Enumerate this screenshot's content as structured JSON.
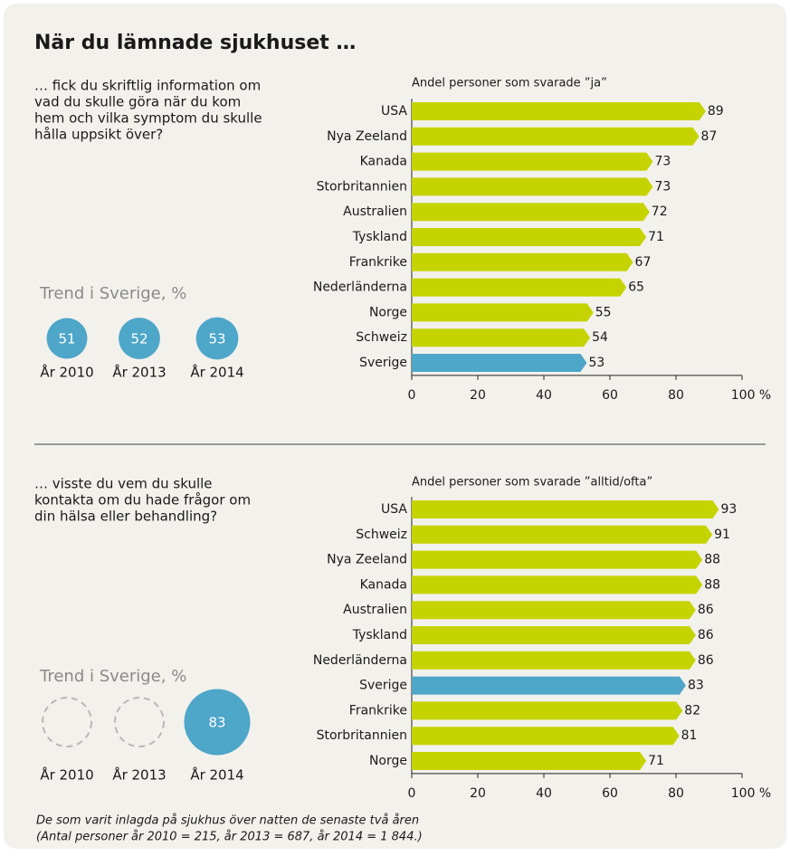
{
  "title": "När du lämnade sjukhuset …",
  "footnote": [
    "De som varit inlagda på sjukhus över natten de senaste två åren",
    "(Antal personer år 2010 = 215, år 2013 = 687, år 2014 = 1 844.)"
  ],
  "chart_data": [
    {
      "type": "bar",
      "question": [
        "… fick du skriftlig information om",
        "vad du skulle göra när du kom",
        "hem och vilka symptom du skulle",
        "hålla uppsikt över?"
      ],
      "subtitle": "Andel personer som svarade ”ja”",
      "categories": [
        "USA",
        "Nya Zeeland",
        "Kanada",
        "Storbritannien",
        "Australien",
        "Tyskland",
        "Frankrike",
        "Nederländerna",
        "Norge",
        "Schweiz",
        "Sverige"
      ],
      "values": [
        89,
        87,
        73,
        73,
        72,
        71,
        67,
        65,
        55,
        54,
        53
      ],
      "colors": [
        "#c5d400",
        "#c5d400",
        "#c5d400",
        "#c5d400",
        "#c5d400",
        "#c5d400",
        "#c5d400",
        "#c5d400",
        "#c5d400",
        "#c5d400",
        "#4ea6c9"
      ],
      "xlim": [
        0,
        100
      ],
      "xticks": [
        0,
        20,
        40,
        60,
        80,
        {
          "value": 100,
          "label": "100 %"
        }
      ],
      "trend": {
        "label": "Trend i Sverige, %",
        "years": [
          "År 2010",
          "År 2013",
          "År 2014"
        ],
        "values": [
          51,
          52,
          53
        ],
        "color": "#4ea6c9"
      }
    },
    {
      "type": "bar",
      "question": [
        "… visste du vem du skulle",
        "kontakta om du hade frågor om",
        "din hälsa eller behandling?"
      ],
      "subtitle": "Andel personer som svarade ”alltid/ofta”",
      "categories": [
        "USA",
        "Schweiz",
        "Nya Zeeland",
        "Kanada",
        "Australien",
        "Tyskland",
        "Nederländerna",
        "Sverige",
        "Frankrike",
        "Storbritannien",
        "Norge"
      ],
      "values": [
        93,
        91,
        88,
        88,
        86,
        86,
        86,
        83,
        82,
        81,
        71
      ],
      "colors": [
        "#c5d400",
        "#c5d400",
        "#c5d400",
        "#c5d400",
        "#c5d400",
        "#c5d400",
        "#c5d400",
        "#4ea6c9",
        "#c5d400",
        "#c5d400",
        "#c5d400"
      ],
      "xlim": [
        0,
        100
      ],
      "xticks": [
        0,
        20,
        40,
        60,
        80,
        {
          "value": 100,
          "label": "100 %"
        }
      ],
      "trend": {
        "label": "Trend i Sverige, %",
        "years": [
          "År 2010",
          "År 2013",
          "År 2014"
        ],
        "values": [
          null,
          null,
          83
        ],
        "color": "#4ea6c9"
      }
    }
  ]
}
